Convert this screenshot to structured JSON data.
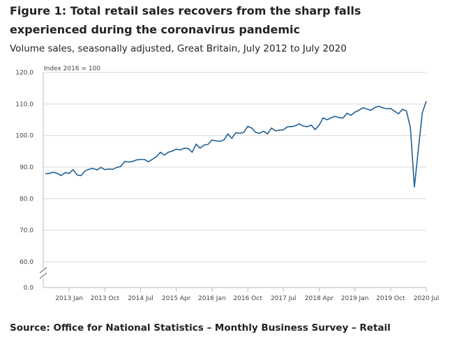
{
  "header": {
    "title": "Figure 1: Total retail sales recovers from the sharp falls experienced during the coronavirus pandemic",
    "subtitle": "Volume sales, seasonally adjusted, Great Britain, July 2012 to July 2020"
  },
  "footer": {
    "source": "Source: Office for National Statistics – Monthly Business Survey – Retail"
  },
  "colors": {
    "line": "#206095",
    "grid": "#d9d9d9",
    "axis": "#bbbbbb",
    "text": "#222222",
    "tick_text": "#444444"
  },
  "chart_data": {
    "type": "line",
    "title": "Figure 1: Total retail sales recovers from the sharp falls experienced during the coronavirus pandemic",
    "subtitle": "Volume sales, seasonally adjusted, Great Britain, July 2012 to July 2020",
    "ylabel": "Index 2016 = 100",
    "xlabel": "",
    "axis_break": true,
    "ylim": [
      0,
      120
    ],
    "y_ticks": [
      "0.0",
      "60.0",
      "70.0",
      "80.0",
      "90.0",
      "100.0",
      "110.0",
      "120.0"
    ],
    "grid": true,
    "x_start": "2012 Jul",
    "x_ticks": [
      {
        "label": "2013 Jan",
        "index": 6
      },
      {
        "label": "2013 Oct",
        "index": 15
      },
      {
        "label": "2014 Jul",
        "index": 24
      },
      {
        "label": "2015 Apr",
        "index": 33
      },
      {
        "label": "2016 Jan",
        "index": 42
      },
      {
        "label": "2016 Oct",
        "index": 51
      },
      {
        "label": "2017 Jul",
        "index": 60
      },
      {
        "label": "2018 Apr",
        "index": 69
      },
      {
        "label": "2019 Jan",
        "index": 78
      },
      {
        "label": "2019 Oct",
        "index": 87
      },
      {
        "label": "2020 Jul",
        "index": 96
      }
    ],
    "series": [
      {
        "name": "Total retail sales volume",
        "values": [
          87.9,
          88.0,
          88.4,
          88.0,
          87.3,
          88.3,
          88.0,
          89.2,
          87.5,
          87.3,
          88.8,
          89.3,
          89.6,
          89.1,
          89.9,
          89.2,
          89.4,
          89.3,
          89.9,
          90.2,
          91.8,
          91.6,
          91.8,
          92.3,
          92.4,
          92.4,
          91.7,
          92.5,
          93.3,
          94.7,
          93.8,
          94.7,
          95.1,
          95.7,
          95.4,
          96.0,
          95.9,
          94.7,
          97.3,
          96.0,
          97.0,
          97.2,
          98.6,
          98.3,
          98.2,
          98.6,
          100.5,
          99.1,
          100.9,
          100.7,
          101.0,
          102.9,
          102.4,
          101.0,
          100.7,
          101.4,
          100.5,
          102.4,
          101.5,
          101.7,
          101.8,
          102.8,
          102.8,
          103.1,
          103.7,
          103.0,
          102.8,
          103.3,
          101.9,
          103.3,
          105.6,
          105.0,
          105.6,
          106.1,
          105.7,
          105.5,
          107.1,
          106.4,
          107.4,
          108.0,
          108.8,
          108.4,
          108.0,
          108.8,
          109.3,
          108.8,
          108.5,
          108.6,
          107.7,
          106.9,
          108.3,
          107.8,
          102.5,
          83.7,
          95.6,
          107.2,
          110.9
        ]
      }
    ]
  }
}
